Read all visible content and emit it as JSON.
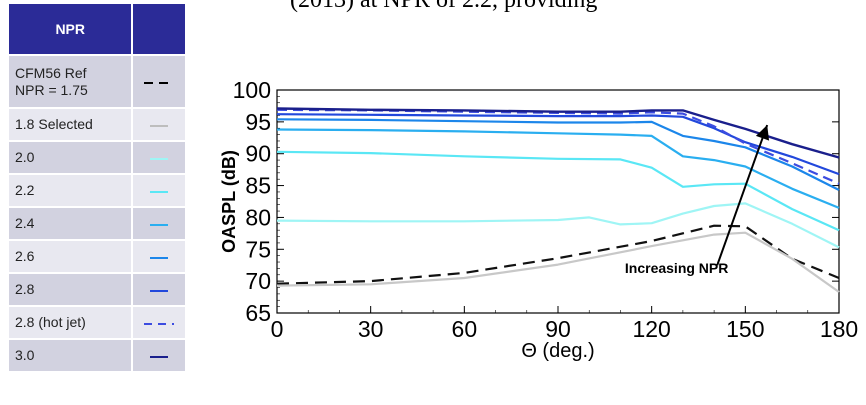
{
  "top_fragment": "(2013) at NPR of 2.2, providing",
  "legend": {
    "header": "NPR",
    "header_right": "",
    "rows": [
      {
        "label": "CFM56 Ref\nNPR = 1.75",
        "color": "#000000",
        "dash": "dashed-black"
      },
      {
        "label": "1.8  Selected",
        "color": "#bdbdbd",
        "dash": "solid"
      },
      {
        "label": "2.0",
        "color": "#9ff5f5",
        "dash": "solid"
      },
      {
        "label": "2.2",
        "color": "#5ae7f5",
        "dash": "solid"
      },
      {
        "label": "2.4",
        "color": "#2aaef0",
        "dash": "solid"
      },
      {
        "label": "2.6",
        "color": "#1c86ea",
        "dash": "solid"
      },
      {
        "label": "2.8",
        "color": "#2248dc",
        "dash": "solid"
      },
      {
        "label": "2.8 (hot jet)",
        "color": "#3c4ce0",
        "dash": "dashed"
      },
      {
        "label": "3.0",
        "color": "#1a1f8c",
        "dash": "solid"
      }
    ]
  },
  "chart_data": {
    "type": "line",
    "xlabel": "Θ (deg.)",
    "ylabel": "OASPL (dB)",
    "xlim": [
      0,
      180
    ],
    "ylim": [
      65,
      100
    ],
    "xticks": [
      "0",
      "30",
      "60",
      "90",
      "120",
      "150",
      "180"
    ],
    "yticks": [
      "65",
      "70",
      "75",
      "80",
      "85",
      "90",
      "95",
      "100"
    ],
    "annotation": "Increasing NPR",
    "series": [
      {
        "name": "CFM56 Ref NPR = 1.75",
        "color": "#111111",
        "dash": "12,7",
        "width": 2.2,
        "x": [
          0,
          30,
          60,
          90,
          120,
          140,
          150,
          165,
          180
        ],
        "y": [
          69.6,
          70.0,
          71.3,
          73.6,
          76.3,
          78.7,
          78.6,
          73.5,
          70.5
        ]
      },
      {
        "name": "1.8 Selected",
        "color": "#c8c8c8",
        "dash": "",
        "width": 2.2,
        "x": [
          0,
          30,
          60,
          90,
          120,
          140,
          150,
          165,
          180
        ],
        "y": [
          69.3,
          69.5,
          70.5,
          72.6,
          75.5,
          77.3,
          77.6,
          73.5,
          68.3
        ]
      },
      {
        "name": "2.0",
        "color": "#9ff5f5",
        "dash": "",
        "width": 2.2,
        "x": [
          0,
          30,
          60,
          90,
          100,
          110,
          120,
          130,
          140,
          150,
          165,
          180
        ],
        "y": [
          79.5,
          79.4,
          79.4,
          79.6,
          80.0,
          78.9,
          79.1,
          80.6,
          81.8,
          82.2,
          79.0,
          75.3
        ]
      },
      {
        "name": "2.2",
        "color": "#5ae7f5",
        "dash": "",
        "width": 2.2,
        "x": [
          0,
          30,
          60,
          90,
          110,
          120,
          130,
          140,
          150,
          165,
          180
        ],
        "y": [
          90.3,
          90.1,
          89.6,
          89.2,
          89.1,
          87.8,
          84.8,
          85.2,
          85.3,
          81.3,
          78.0
        ]
      },
      {
        "name": "2.4",
        "color": "#2aaef0",
        "dash": "",
        "width": 2.2,
        "x": [
          0,
          30,
          60,
          90,
          110,
          120,
          130,
          140,
          150,
          165,
          180
        ],
        "y": [
          93.8,
          93.7,
          93.5,
          93.2,
          93.0,
          92.8,
          89.6,
          89.0,
          88.0,
          84.5,
          81.5
        ]
      },
      {
        "name": "2.6",
        "color": "#1c86ea",
        "dash": "",
        "width": 2.2,
        "x": [
          0,
          30,
          60,
          90,
          110,
          120,
          130,
          140,
          150,
          165,
          180
        ],
        "y": [
          95.4,
          95.3,
          95.1,
          94.9,
          94.9,
          95.0,
          92.8,
          92.0,
          91.0,
          88.0,
          84.3
        ]
      },
      {
        "name": "2.8",
        "color": "#2248dc",
        "dash": "",
        "width": 2.2,
        "x": [
          0,
          30,
          60,
          90,
          110,
          120,
          130,
          140,
          150,
          165,
          180
        ],
        "y": [
          96.2,
          96.1,
          96.0,
          95.9,
          95.9,
          96.0,
          95.8,
          94.0,
          91.8,
          89.5,
          86.8
        ]
      },
      {
        "name": "2.8 (hot jet)",
        "color": "#3c4ce0",
        "dash": "10,6",
        "width": 2.2,
        "x": [
          0,
          30,
          60,
          90,
          110,
          120,
          130,
          140,
          150,
          165,
          180
        ],
        "y": [
          96.9,
          96.8,
          96.6,
          96.4,
          96.3,
          96.5,
          96.3,
          94.3,
          91.6,
          88.5,
          85.3
        ]
      },
      {
        "name": "3.0",
        "color": "#1a1f8c",
        "dash": "",
        "width": 2.4,
        "x": [
          0,
          30,
          60,
          90,
          110,
          120,
          130,
          140,
          150,
          165,
          180
        ],
        "y": [
          97.1,
          96.9,
          96.8,
          96.6,
          96.6,
          96.8,
          96.8,
          95.3,
          93.9,
          91.5,
          89.4
        ]
      }
    ]
  }
}
